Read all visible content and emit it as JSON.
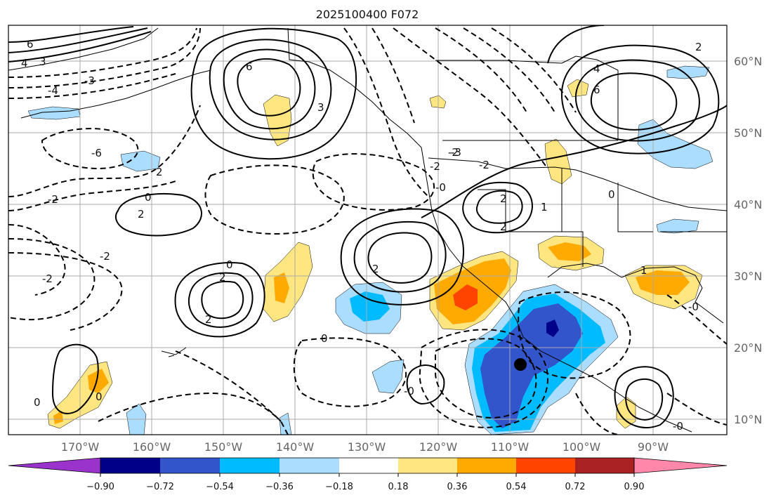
{
  "title": "2025100400 F072",
  "map": {
    "lat_labels": [
      "60°N",
      "50°N",
      "40°N",
      "30°N",
      "20°N",
      "10°N"
    ],
    "lon_labels": [
      "170°W",
      "160°W",
      "150°W",
      "140°W",
      "130°W",
      "120°W",
      "110°W",
      "100°W",
      "90°W"
    ]
  },
  "contour_labels": [
    "6",
    "4",
    "3",
    "-3",
    "-4",
    "-2",
    "-6",
    "2",
    "2",
    "0",
    "-2",
    "-2",
    "2",
    "0",
    "-2",
    "-3",
    "-2",
    "-0",
    "2",
    "2",
    "1",
    "0",
    "6",
    "3",
    "6",
    "4",
    "2",
    "0",
    "1",
    "-0",
    "2",
    "-0",
    "-2",
    "0",
    "0",
    "-0",
    "2"
  ],
  "colorbar": {
    "ticks": [
      "−0.90",
      "−0.72",
      "−0.54",
      "−0.36",
      "−0.18",
      "0.18",
      "0.36",
      "0.54",
      "0.72",
      "0.90"
    ],
    "colors": [
      "#9933cc",
      "#000088",
      "#3355cc",
      "#00bbff",
      "#aaddff",
      "#ffffff",
      "#ffe680",
      "#ffaa00",
      "#ff4400",
      "#aa2222",
      "#ff88aa"
    ]
  },
  "shading_colors": {
    "light_blue": "#aaddff",
    "blue": "#00bbff",
    "mid_blue": "#3355cc",
    "navy": "#000088",
    "light_yellow": "#ffe680",
    "orange": "#ffaa00",
    "red_orange": "#ff4400"
  },
  "marker": {
    "label": "storm-center"
  }
}
